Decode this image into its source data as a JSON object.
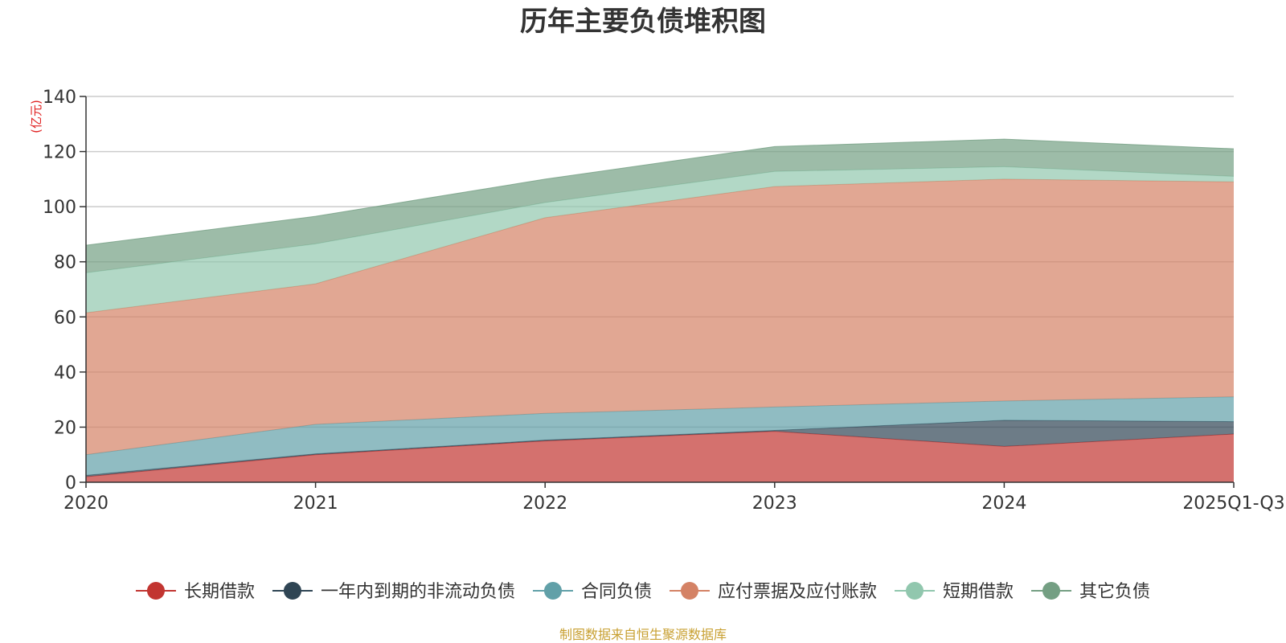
{
  "chart_data": {
    "type": "area",
    "stacked": true,
    "title": "历年主要负债堆积图",
    "ylabel": "(亿元)",
    "xlabel": "",
    "ylim": [
      0,
      140
    ],
    "yticks": [
      0,
      20,
      40,
      60,
      80,
      100,
      120,
      140
    ],
    "categories": [
      "2020",
      "2021",
      "2022",
      "2023",
      "2024",
      "2025Q1-Q3"
    ],
    "grid": true,
    "legend_position": "bottom",
    "series": [
      {
        "name": "长期借款",
        "color": "#c23531",
        "values": [
          2,
          10,
          15,
          18.5,
          13,
          17.5
        ]
      },
      {
        "name": "一年内到期的非流动负债",
        "color": "#2f4554",
        "values": [
          0.5,
          0.3,
          0.3,
          0.3,
          9.5,
          4.5
        ]
      },
      {
        "name": "合同负债",
        "color": "#61a0a8",
        "values": [
          7.5,
          10.7,
          9.7,
          8.5,
          7,
          9
        ]
      },
      {
        "name": "应付票据及应付账款",
        "color": "#d48265",
        "values": [
          51.5,
          51,
          71,
          80,
          80.5,
          78
        ]
      },
      {
        "name": "短期借款",
        "color": "#91c7ae",
        "values": [
          14.5,
          14.5,
          5.5,
          5.5,
          4.5,
          2
        ]
      },
      {
        "name": "其它负债",
        "color": "#749f83",
        "values": [
          10,
          10,
          8.5,
          9,
          10,
          10
        ]
      }
    ],
    "source": "制图数据来自恒生聚源数据库"
  }
}
